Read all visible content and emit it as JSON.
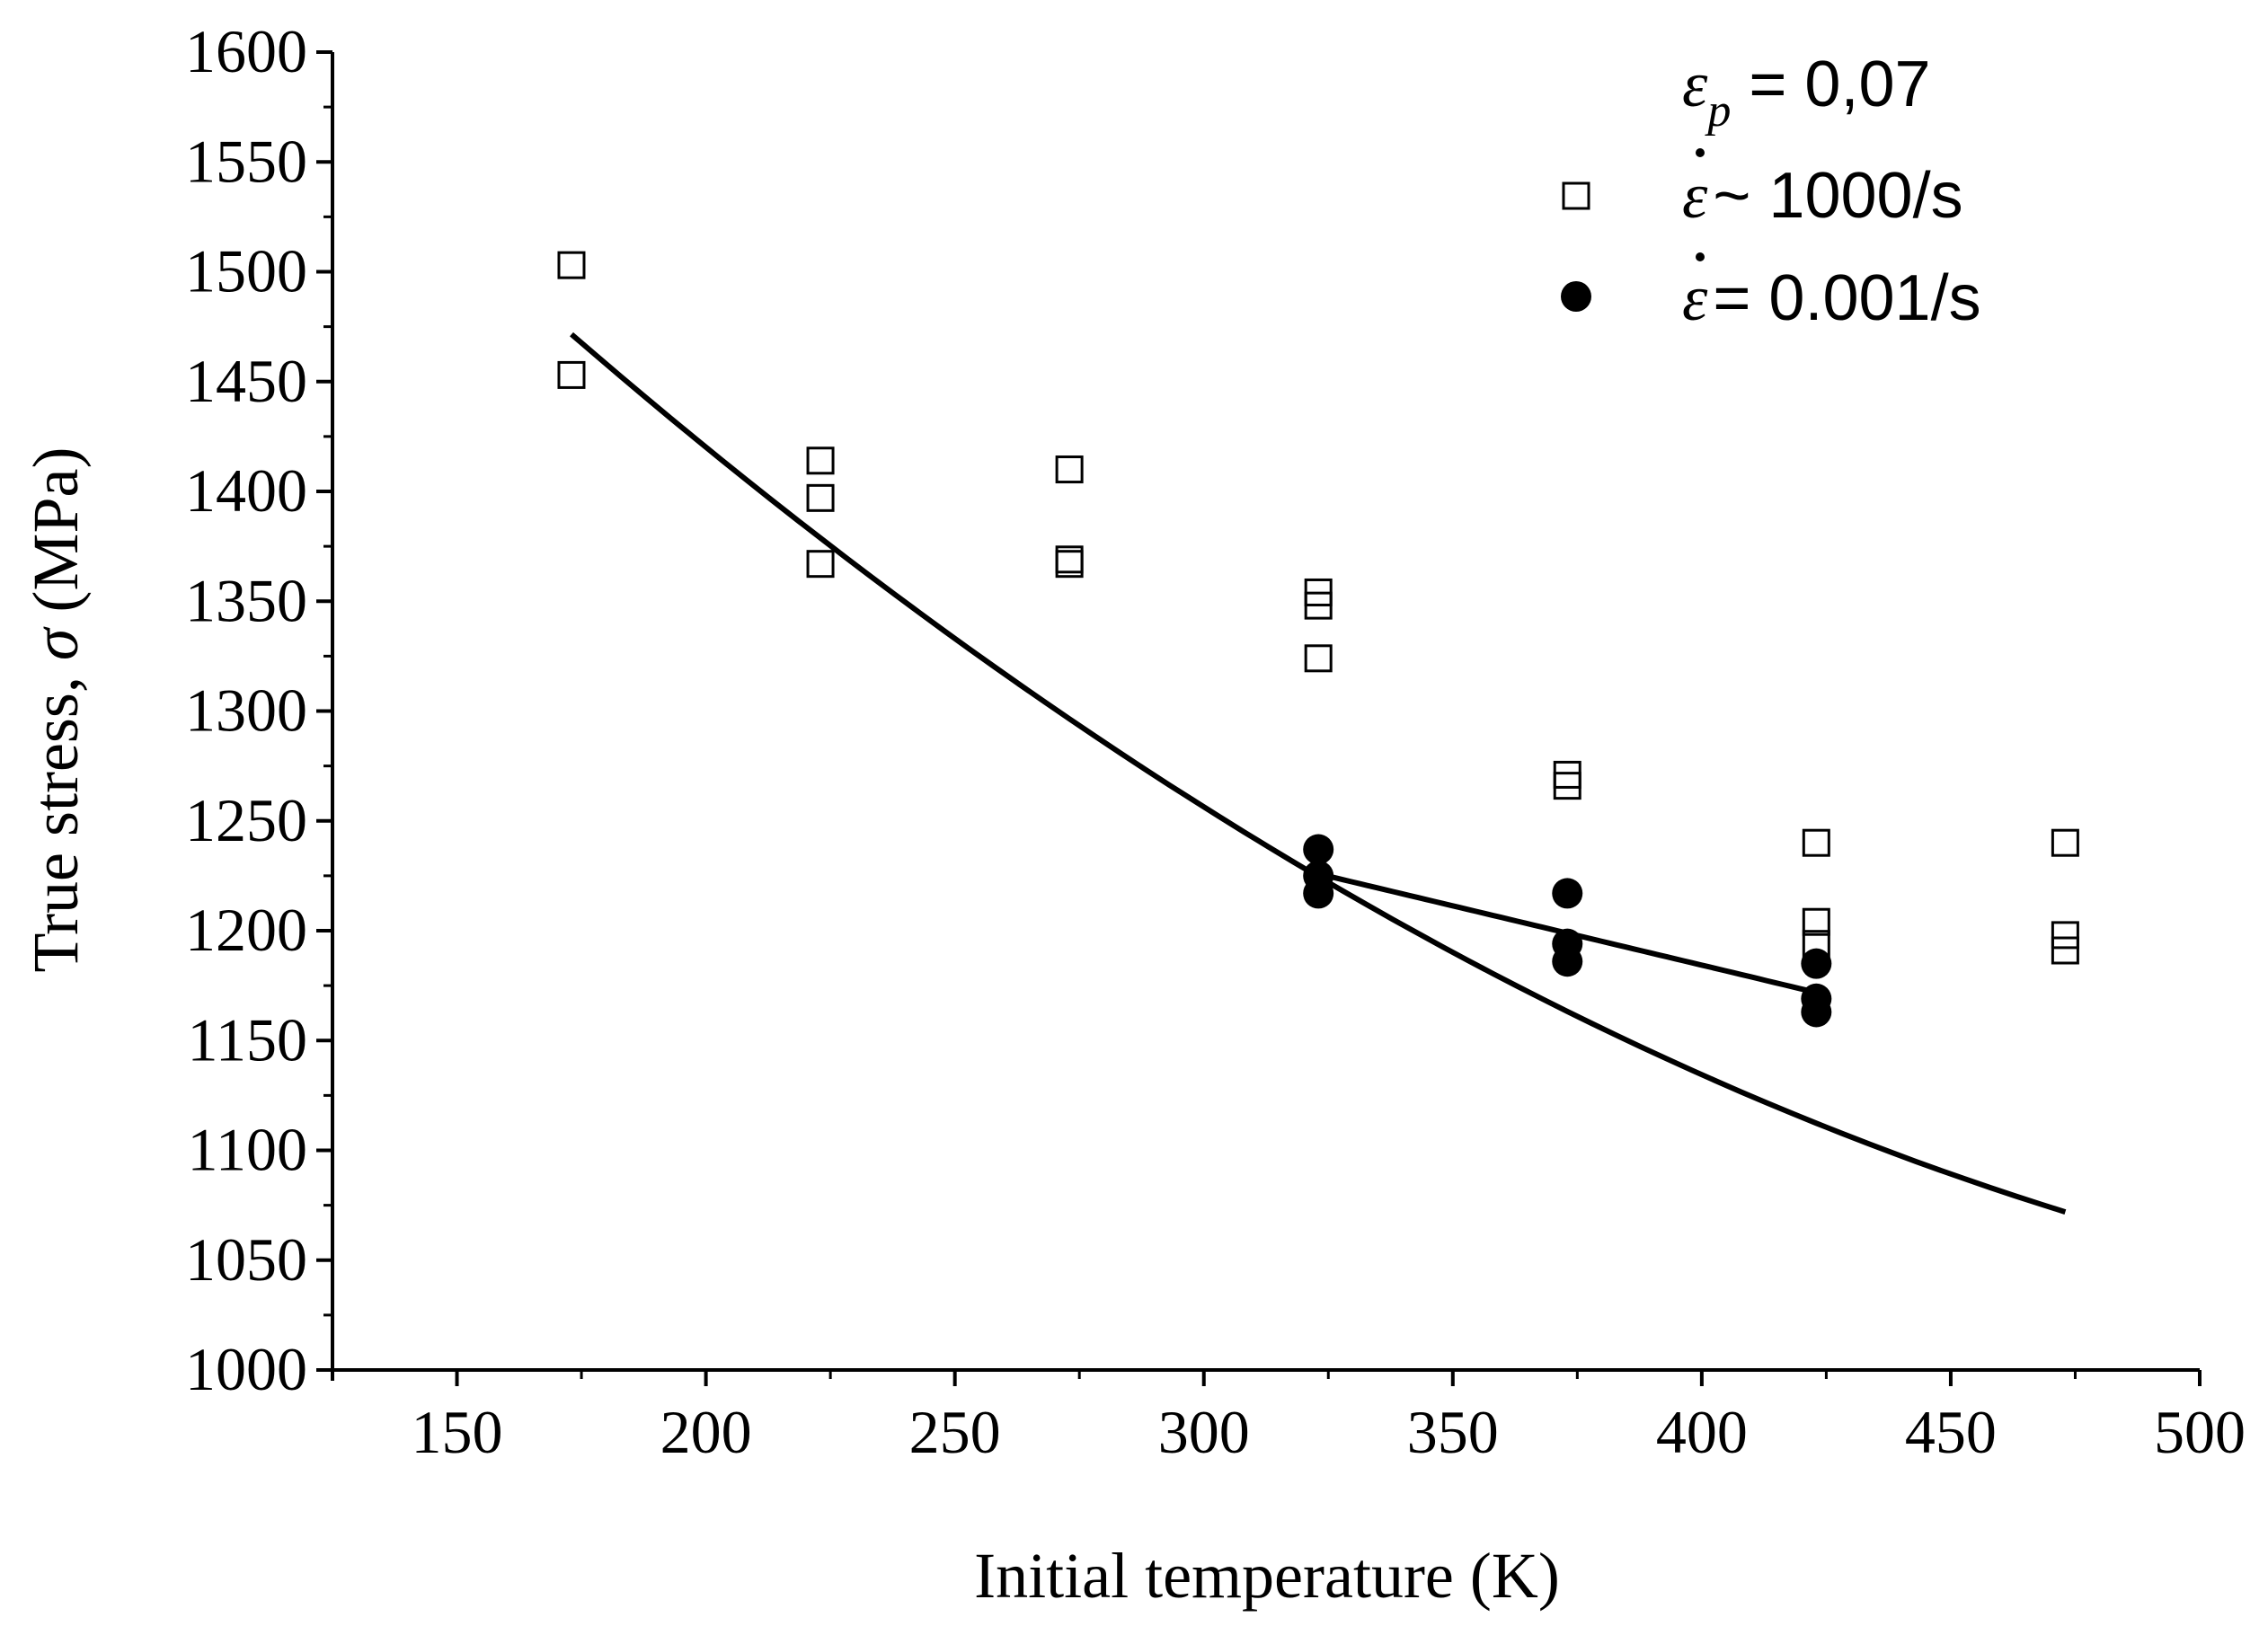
{
  "chart_data": {
    "type": "scatter",
    "xlabel": "Initial temperature (K)",
    "ylabel": {
      "prefix": "True stress, ",
      "symbol": "σ",
      "suffix": " (MPa)"
    },
    "xlim": [
      125,
      500
    ],
    "ylim": [
      1000,
      1600
    ],
    "xticks": [
      150,
      200,
      250,
      300,
      350,
      400,
      450,
      500
    ],
    "yticks": [
      1000,
      1050,
      1100,
      1150,
      1200,
      1250,
      1300,
      1350,
      1400,
      1450,
      1500,
      1550,
      1600
    ],
    "xtick_labels": [
      "150",
      "200",
      "250",
      "300",
      "350",
      "400",
      "450",
      "500"
    ],
    "ytick_labels": [
      "1000",
      "1050",
      "1100",
      "1150",
      "1200",
      "1250",
      "1300",
      "1350",
      "1400",
      "1450",
      "1500",
      "1550",
      "1600"
    ],
    "legend": {
      "position": "top-right",
      "header": {
        "symbol": "ε",
        "subscript": "p",
        "text": " = 0,07"
      },
      "entries": [
        {
          "series": "dynamic",
          "symbol": "ε",
          "text": "~ 1000/s"
        },
        {
          "series": "quasi_static",
          "symbol": "ε",
          "text": "= 0.001/s"
        }
      ]
    },
    "series": [
      {
        "name": "dynamic",
        "label": "~ 1000/s",
        "marker": "open-square",
        "color": "#000000",
        "points": [
          [
            173,
            1503
          ],
          [
            173,
            1453
          ],
          [
            223,
            1414
          ],
          [
            223,
            1397
          ],
          [
            223,
            1367
          ],
          [
            273,
            1410
          ],
          [
            273,
            1369
          ],
          [
            273,
            1367
          ],
          [
            323,
            1354
          ],
          [
            323,
            1348
          ],
          [
            323,
            1324
          ],
          [
            373,
            1271
          ],
          [
            373,
            1266
          ],
          [
            423,
            1240
          ],
          [
            423,
            1204
          ],
          [
            423,
            1194
          ],
          [
            473,
            1240
          ],
          [
            473,
            1198
          ],
          [
            473,
            1191
          ]
        ],
        "fit": {
          "x_start": 173,
          "x_end": 473,
          "coefficients": [
            1873.5,
            -2.686,
            0.002096
          ]
        }
      },
      {
        "name": "quasi_static",
        "label": "= 0.001/s",
        "marker": "filled-circle",
        "color": "#000000",
        "points": [
          [
            323,
            1237
          ],
          [
            323,
            1225
          ],
          [
            323,
            1217
          ],
          [
            373,
            1217
          ],
          [
            373,
            1194
          ],
          [
            373,
            1186
          ],
          [
            423,
            1185
          ],
          [
            423,
            1169
          ],
          [
            423,
            1163
          ]
        ],
        "fit": {
          "x_start": 323,
          "x_end": 423,
          "coefficients": [
            1400.3,
            -0.54,
            0
          ]
        }
      }
    ]
  }
}
